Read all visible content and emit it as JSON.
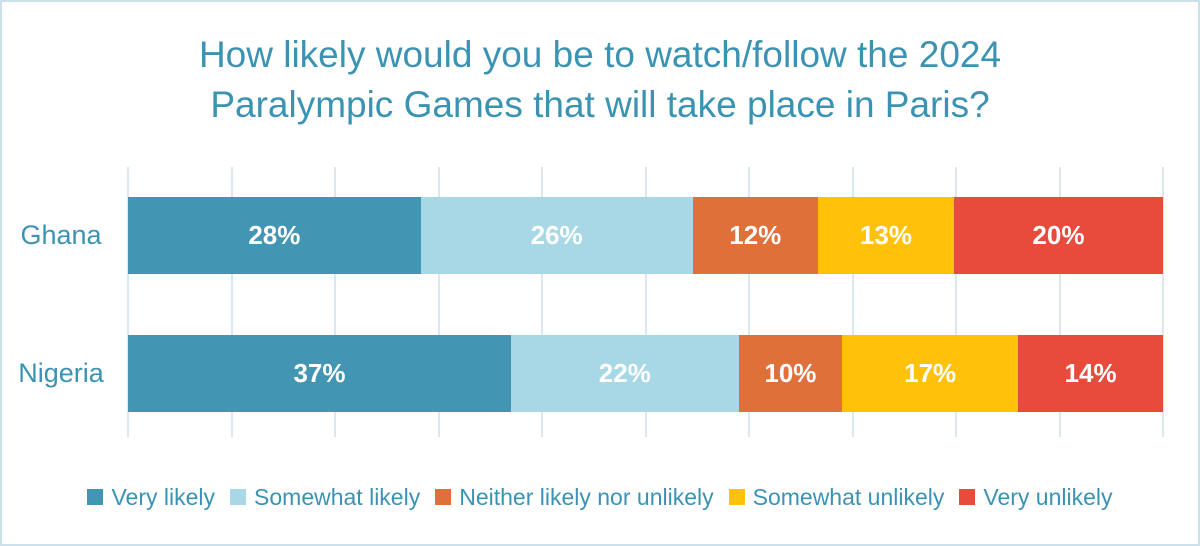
{
  "header": {
    "title_lines": [
      "How likely would you be to watch/follow the 2024",
      "Paralympic Games that will take place in Paris?"
    ]
  },
  "colors": {
    "title_text": "#3b93b3",
    "axis_label_text": "#3b93b3",
    "legend_text": "#3b93b3",
    "gridline": "#dce8ee",
    "frame_border": "#cde1ea",
    "bar_label_text": "#ffffff"
  },
  "chart_data": {
    "type": "bar",
    "subtype": "stacked-horizontal-100pct",
    "title": "How likely would you be to watch/follow the 2024 Paralympic Games that will take place in Paris?",
    "categories": [
      "Ghana",
      "Nigeria"
    ],
    "series": [
      {
        "name": "Very likely",
        "color": "#4296b4",
        "values": [
          28,
          37
        ]
      },
      {
        "name": "Somewhat likely",
        "color": "#a8d8e6",
        "values": [
          26,
          22
        ]
      },
      {
        "name": "Neither likely nor unlikely",
        "color": "#e0703a",
        "values": [
          12,
          10
        ]
      },
      {
        "name": "Somewhat unlikely",
        "color": "#ffc10a",
        "values": [
          13,
          17
        ]
      },
      {
        "name": "Very unlikely",
        "color": "#e84a3c",
        "values": [
          20,
          14
        ]
      }
    ],
    "value_format": "percent",
    "value_suffix": "%",
    "xlabel": "",
    "ylabel": "",
    "xlim": [
      0,
      100
    ],
    "gridline_step": 10,
    "grid": "vertical-on",
    "legend_position": "bottom"
  }
}
